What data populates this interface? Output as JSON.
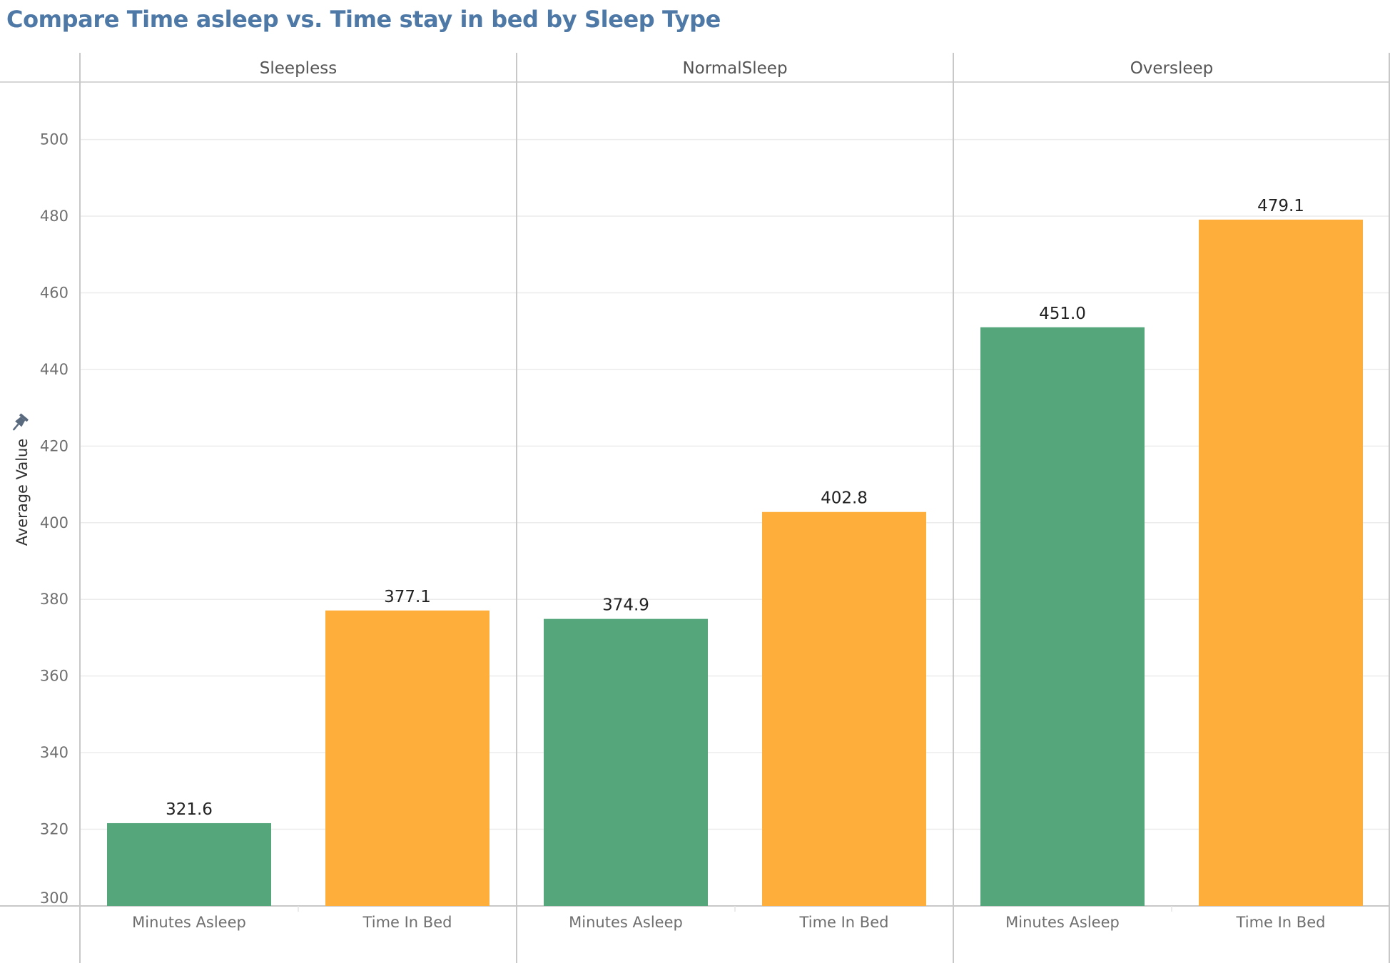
{
  "title": "Compare Time asleep vs. Time stay in bed by Sleep Type",
  "chart_data": {
    "type": "bar",
    "title": "Compare Time asleep vs. Time stay in bed by Sleep Type",
    "ylabel": "Average Value",
    "xlabel": "",
    "ylim": [
      300,
      515
    ],
    "yticks": [
      300,
      320,
      340,
      360,
      380,
      400,
      420,
      440,
      460,
      480,
      500
    ],
    "grid": true,
    "panels": [
      {
        "name": "Sleepless",
        "categories": [
          "Minutes Asleep",
          "Time In Bed"
        ],
        "values": [
          321.6,
          377.1
        ],
        "labels": [
          "321.6",
          "377.1"
        ]
      },
      {
        "name": "NormalSleep",
        "categories": [
          "Minutes Asleep",
          "Time In Bed"
        ],
        "values": [
          374.9,
          402.8
        ],
        "labels": [
          "374.9",
          "402.8"
        ]
      },
      {
        "name": "Oversleep",
        "categories": [
          "Minutes Asleep",
          "Time In Bed"
        ],
        "values": [
          451.0,
          479.1
        ],
        "labels": [
          "451.0",
          "479.1"
        ]
      }
    ],
    "colors": {
      "Minutes Asleep": "#55a77b",
      "Time In Bed": "#feae3b"
    }
  },
  "style": {
    "title_color": "#4e79a7",
    "axis_text_color": "#6f6f6f",
    "header_text_color": "#555555",
    "label_color": "#222222",
    "grid_color": "#ececec",
    "border_color": "#c8c8c8",
    "pin_icon": "pin-icon"
  }
}
